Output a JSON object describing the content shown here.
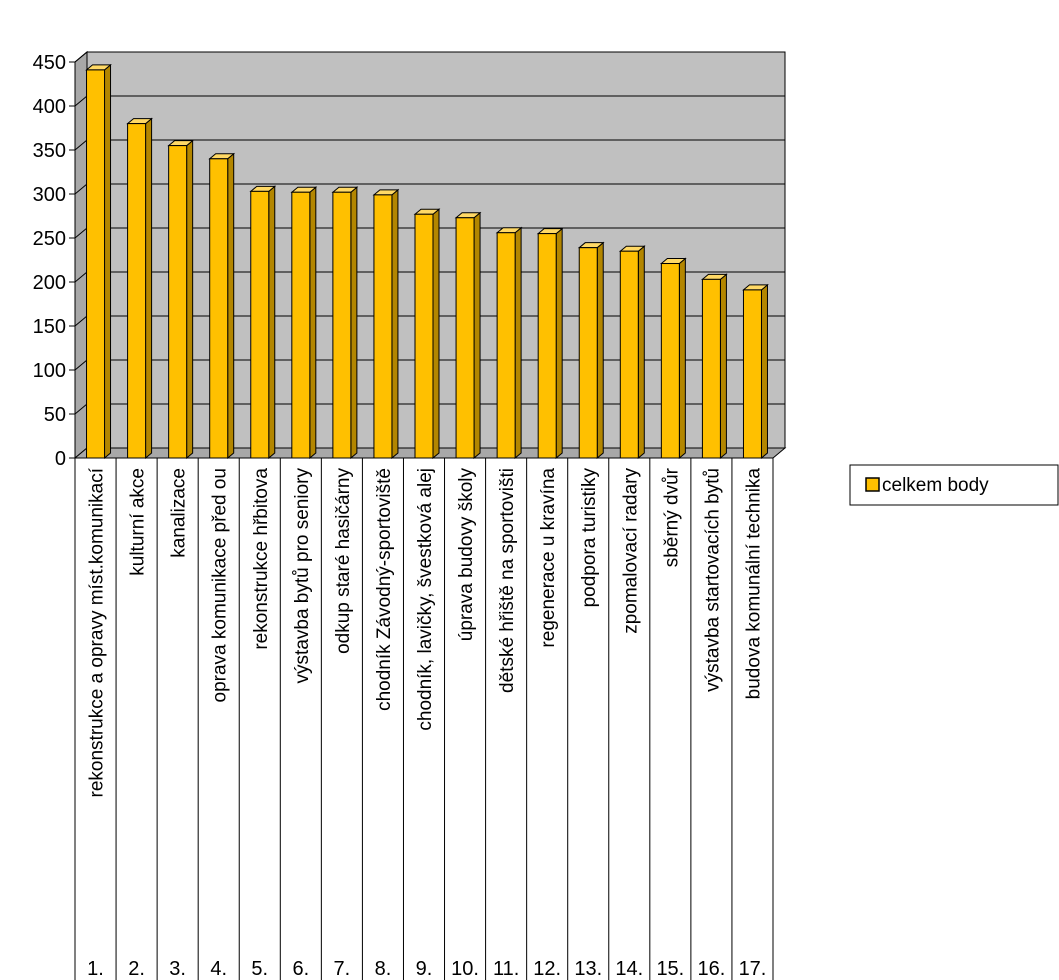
{
  "chart_data": {
    "type": "bar",
    "title": "",
    "xlabel": "",
    "ylabel": "",
    "ylim": [
      0,
      450
    ],
    "yticks": [
      0,
      50,
      100,
      150,
      200,
      250,
      300,
      350,
      400,
      450
    ],
    "grid": true,
    "legend_position": "right",
    "style": "3d",
    "numbers": [
      "1.",
      "2.",
      "3.",
      "4.",
      "5.",
      "6.",
      "7.",
      "8.",
      "9.",
      "10.",
      "11.",
      "12.",
      "13.",
      "14.",
      "15.",
      "16.",
      "17."
    ],
    "categories": [
      "rekonstrukce a opravy míst.komunikací",
      "kulturní akce",
      "kanalizace",
      "oprava komunikace před ou",
      "rekonstrukce hřbitova",
      "výstavba bytů pro seniory",
      "odkup staré hasičárny",
      "chodník Závodný-sportoviště",
      "chodník, lavičky, švestková alej",
      "úprava budovy školy",
      "dětské hřiště na sportovišti",
      "regenerace u kravína",
      "podpora turistiky",
      "zpomalovací radary",
      "sběrný dvůr",
      "výstavba startovacích bytů",
      "budova komunální technika"
    ],
    "series": [
      {
        "name": "celkem body",
        "color": "#FFC000",
        "values": [
          441,
          380,
          355,
          340,
          303,
          302,
          302,
          299,
          277,
          273,
          256,
          255,
          239,
          235,
          221,
          203,
          191
        ]
      }
    ],
    "colors": {
      "plot_back": "#C0C0C0",
      "plot_floor": "#A8A8A8",
      "gridline": "#000000",
      "bar_front": "#FFC000",
      "bar_side": "#B38600",
      "bar_top": "#FFD966"
    }
  }
}
